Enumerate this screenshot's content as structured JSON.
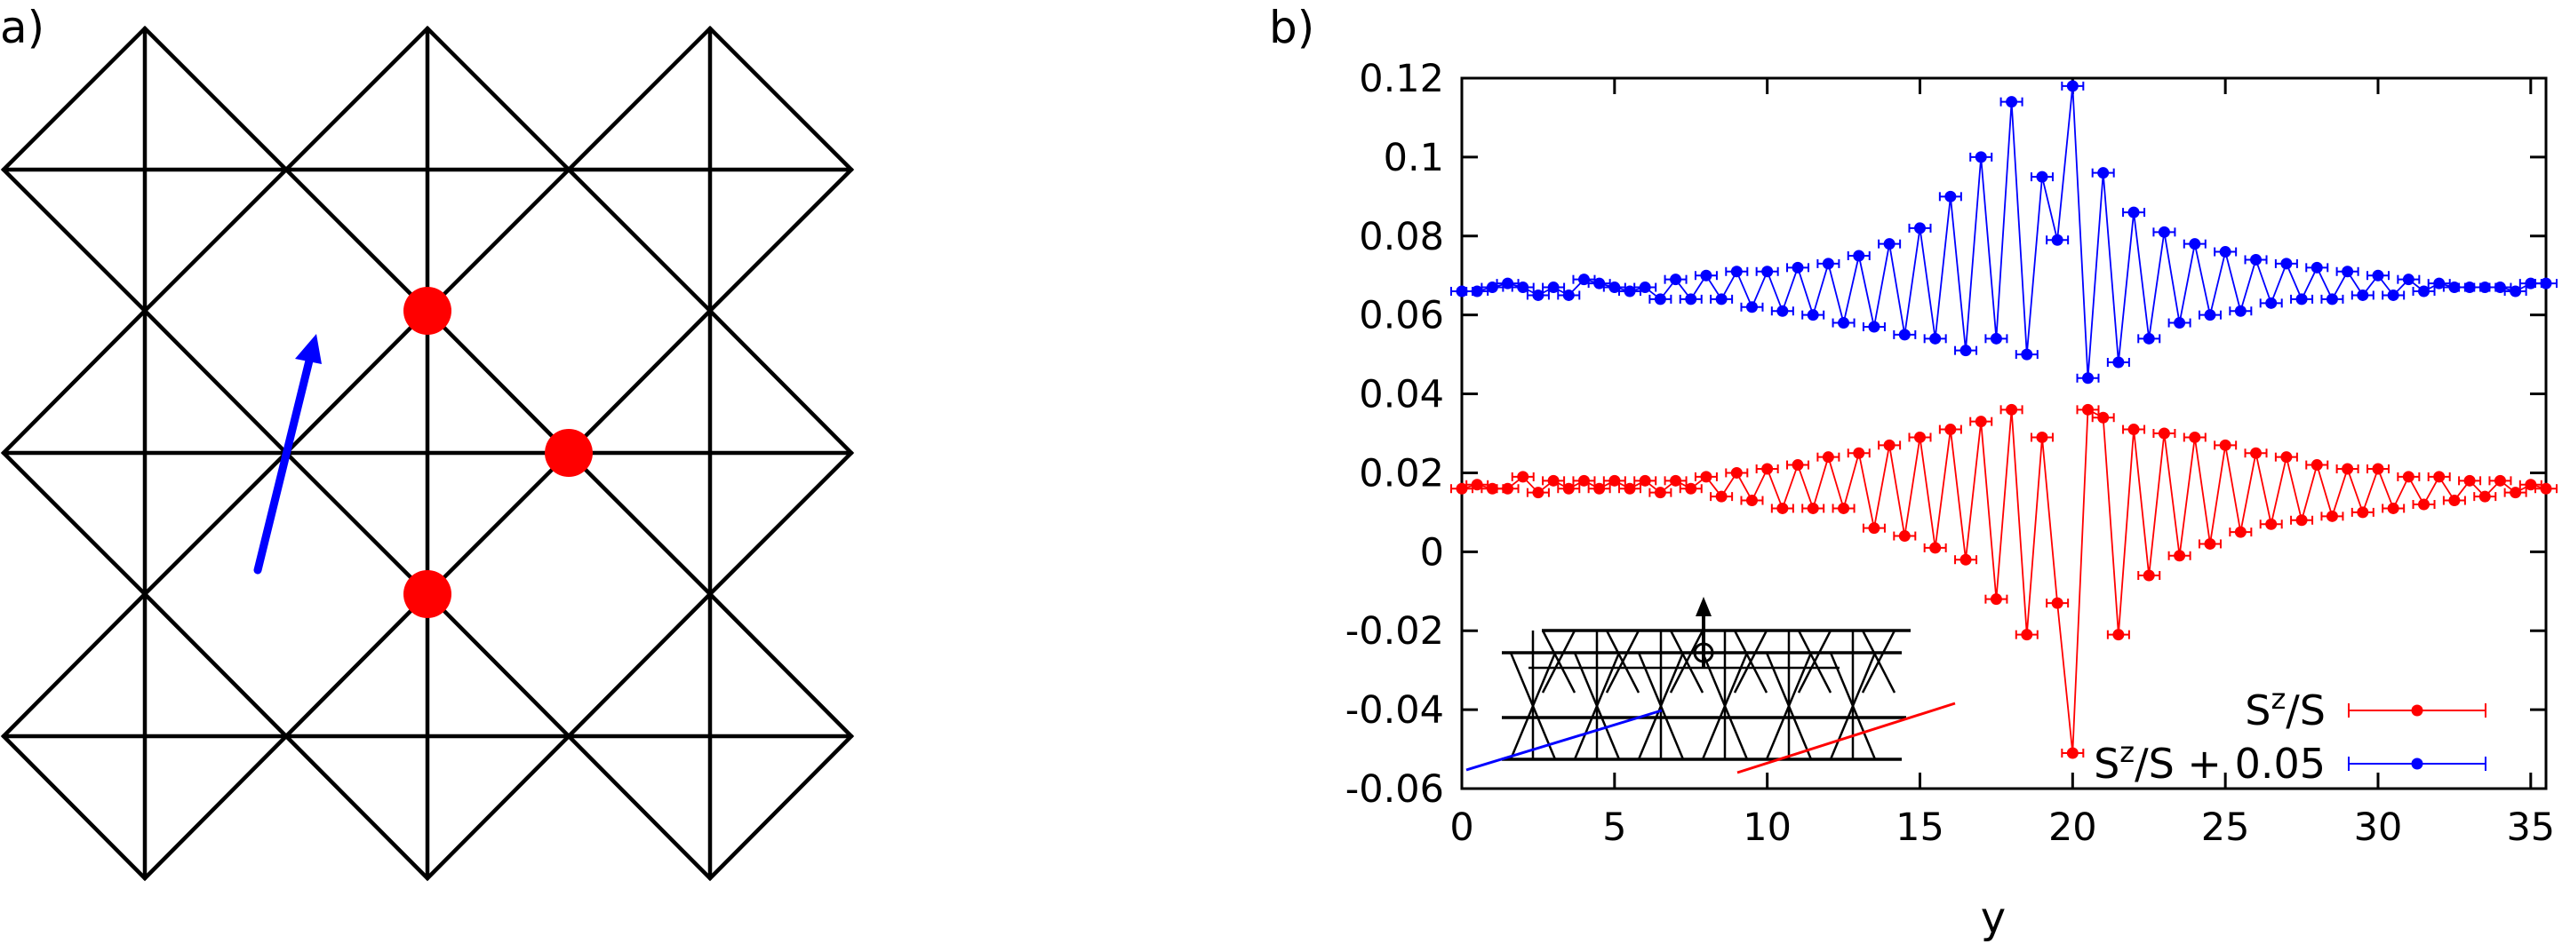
{
  "panel_a": {
    "label": "a)",
    "colors": {
      "lattice": "#000000",
      "dots": "#ff0000",
      "arrow": "#0000ff"
    }
  },
  "panel_b": {
    "label": "b)"
  },
  "chart_data": {
    "type": "scatter",
    "title": "",
    "xlabel": "y",
    "ylabel": "",
    "xlim": [
      0,
      35.5
    ],
    "ylim": [
      -0.06,
      0.12
    ],
    "xticks": [
      0,
      5,
      10,
      15,
      20,
      25,
      30,
      35
    ],
    "yticks": [
      -0.06,
      -0.04,
      -0.02,
      0,
      0.02,
      0.04,
      0.06,
      0.08,
      0.1,
      0.12
    ],
    "xtick_labels": [
      "0",
      "5",
      "10",
      "15",
      "20",
      "25",
      "30",
      "35"
    ],
    "ytick_labels": [
      "-0.06",
      "-0.04",
      "-0.02",
      "0",
      "0.02",
      "0.04",
      "0.06",
      "0.08",
      "0.1",
      "0.12"
    ],
    "grid": false,
    "legend_position": "bottom-right",
    "error_bars": true,
    "x": [
      0,
      0.5,
      1,
      1.5,
      2,
      2.5,
      3,
      3.5,
      4,
      4.5,
      5,
      5.5,
      6,
      6.5,
      7,
      7.5,
      8,
      8.5,
      9,
      9.5,
      10,
      10.5,
      11,
      11.5,
      12,
      12.5,
      13,
      13.5,
      14,
      14.5,
      15,
      15.5,
      16,
      16.5,
      17,
      17.5,
      18,
      18.5,
      19,
      19.5,
      20,
      20.5,
      21,
      21.5,
      22,
      22.5,
      23,
      23.5,
      24,
      24.5,
      25,
      25.5,
      26,
      26.5,
      27,
      27.5,
      28,
      28.5,
      29,
      29.5,
      30,
      30.5,
      31,
      31.5,
      32,
      32.5,
      33,
      33.5,
      34,
      34.5,
      35,
      35.5
    ],
    "series": [
      {
        "name_base": "S",
        "name_sup": "z",
        "name_tail": "/S",
        "color": "#ff0000",
        "values": [
          0.016,
          0.017,
          0.016,
          0.016,
          0.019,
          0.015,
          0.018,
          0.016,
          0.018,
          0.016,
          0.018,
          0.016,
          0.018,
          0.015,
          0.018,
          0.016,
          0.019,
          0.014,
          0.02,
          0.013,
          0.021,
          0.011,
          0.022,
          0.011,
          0.024,
          0.011,
          0.025,
          0.006,
          0.027,
          0.004,
          0.029,
          0.001,
          0.031,
          -0.002,
          0.033,
          -0.012,
          0.036,
          -0.021,
          0.029,
          -0.013,
          -0.051,
          0.036,
          0.034,
          -0.021,
          0.031,
          -0.006,
          0.03,
          -0.001,
          0.029,
          0.002,
          0.027,
          0.005,
          0.025,
          0.007,
          0.024,
          0.008,
          0.022,
          0.009,
          0.021,
          0.01,
          0.021,
          0.011,
          0.019,
          0.012,
          0.019,
          0.013,
          0.018,
          0.014,
          0.018,
          0.015,
          0.017,
          0.016
        ]
      },
      {
        "name_base": "S",
        "name_sup": "z",
        "name_tail": "/S + 0.05",
        "color": "#0000ff",
        "values": [
          0.066,
          0.066,
          0.067,
          0.068,
          0.067,
          0.065,
          0.067,
          0.065,
          0.069,
          0.068,
          0.067,
          0.066,
          0.067,
          0.064,
          0.069,
          0.064,
          0.07,
          0.064,
          0.071,
          0.062,
          0.071,
          0.061,
          0.072,
          0.06,
          0.073,
          0.058,
          0.075,
          0.057,
          0.078,
          0.055,
          0.082,
          0.054,
          0.09,
          0.051,
          0.1,
          0.054,
          0.114,
          0.05,
          0.095,
          0.079,
          0.118,
          0.044,
          0.096,
          0.048,
          0.086,
          0.054,
          0.081,
          0.058,
          0.078,
          0.06,
          0.076,
          0.061,
          0.074,
          0.063,
          0.073,
          0.064,
          0.072,
          0.064,
          0.071,
          0.065,
          0.07,
          0.065,
          0.069,
          0.066,
          0.068,
          0.067,
          0.067,
          0.067,
          0.067,
          0.066,
          0.068,
          0.068
        ]
      }
    ]
  }
}
